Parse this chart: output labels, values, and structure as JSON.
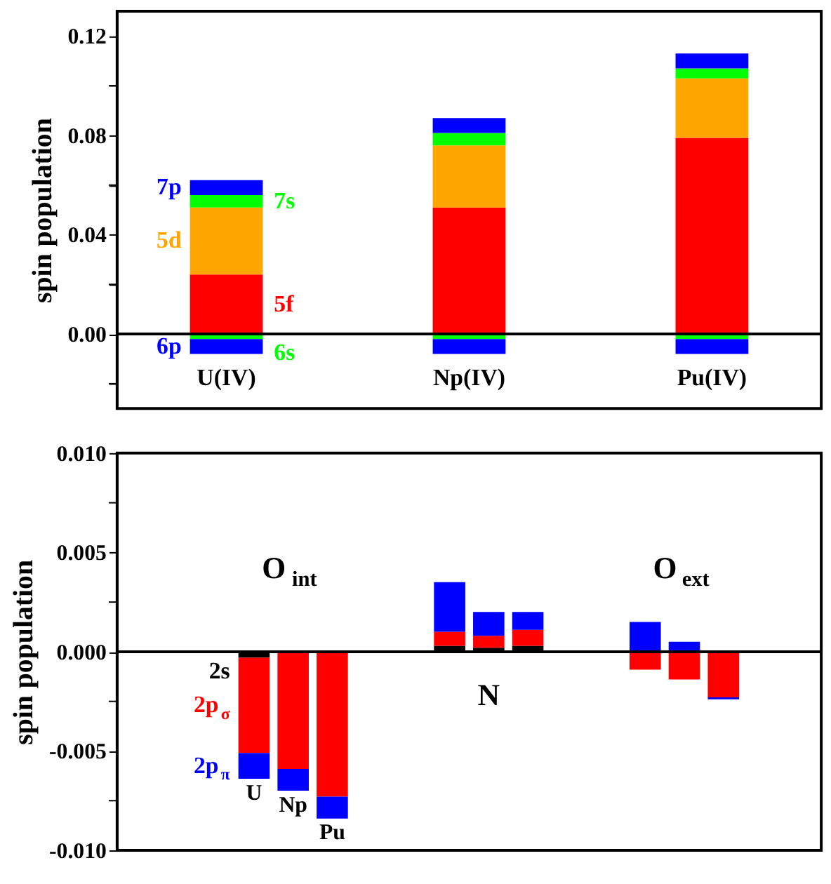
{
  "chart_data": [
    {
      "type": "bar",
      "stacked": true,
      "ylabel": "spin population",
      "categories": [
        "U(IV)",
        "Np(IV)",
        "Pu(IV)"
      ],
      "series": [
        {
          "name": "5f",
          "color": "#ff0000",
          "values": [
            0.024,
            0.051,
            0.079
          ]
        },
        {
          "name": "5d",
          "color": "#ffa500",
          "values": [
            0.027,
            0.025,
            0.024
          ]
        },
        {
          "name": "7s",
          "color": "#00ff00",
          "values": [
            0.005,
            0.005,
            0.004
          ]
        },
        {
          "name": "7p",
          "color": "#0000ff",
          "values": [
            0.006,
            0.006,
            0.006
          ]
        },
        {
          "name": "6s",
          "color": "#00ff00",
          "values": [
            -0.002,
            -0.002,
            -0.002
          ]
        },
        {
          "name": "6p",
          "color": "#0000ff",
          "values": [
            -0.006,
            -0.006,
            -0.006
          ]
        }
      ],
      "ylim": [
        -0.03,
        0.13
      ],
      "yticks": [
        {
          "value": -0.02,
          "label": null
        },
        {
          "value": 0,
          "label": "0.00"
        },
        {
          "value": 0.02,
          "label": null
        },
        {
          "value": 0.04,
          "label": "0.04"
        },
        {
          "value": 0.06,
          "label": null
        },
        {
          "value": 0.08,
          "label": "0.08"
        },
        {
          "value": 0.1,
          "label": null
        },
        {
          "value": 0.12,
          "label": "0.12"
        }
      ],
      "ref_lines": [
        {
          "axis": "y",
          "value": 0,
          "color": "#000000"
        }
      ],
      "grid": false,
      "legend": false
    },
    {
      "type": "bar",
      "stacked": true,
      "ylabel": "spin population",
      "categories": [
        null,
        null,
        null,
        null,
        null,
        null,
        null,
        null,
        null,
        null,
        null,
        null,
        null,
        null,
        null,
        null,
        null,
        null
      ],
      "series": [
        {
          "name": "2s",
          "color": "#000000",
          "values": [
            null,
            null,
            null,
            -0.0003,
            null,
            null,
            null,
            null,
            0.0003,
            0.0002,
            0.0003,
            null,
            null,
            null,
            null,
            null,
            null,
            null
          ]
        },
        {
          "name": "2p$_{σ}$",
          "color": "#ff0000",
          "values": [
            null,
            null,
            null,
            -0.0048,
            -0.0059,
            -0.0073,
            null,
            null,
            0.0007,
            0.0006,
            0.0008,
            null,
            null,
            -0.0009,
            -0.0014,
            -0.0023,
            null,
            null
          ]
        },
        {
          "name": "2p$_{π}$",
          "color": "#0000ff",
          "values": [
            null,
            null,
            null,
            -0.0013,
            -0.0011,
            -0.0011,
            null,
            null,
            0.0025,
            0.0012,
            0.0009,
            null,
            null,
            0.0015,
            0.0005,
            -0.0001,
            null,
            null
          ]
        }
      ],
      "ylim": [
        -0.01,
        0.01
      ],
      "yticks": [
        {
          "value": -0.01,
          "label": "-0.010"
        },
        {
          "value": -0.0075,
          "label": null
        },
        {
          "value": -0.005,
          "label": "-0.005"
        },
        {
          "value": -0.0025,
          "label": null
        },
        {
          "value": 0,
          "label": "0.000"
        },
        {
          "value": 0.0025,
          "label": null
        },
        {
          "value": 0.005,
          "label": "0.005"
        },
        {
          "value": 0.0075,
          "label": null
        },
        {
          "value": 0.01,
          "label": "0.010"
        }
      ],
      "annotations": [
        "O$_{int}$",
        "N",
        "O$_{ext}$",
        "U",
        "Np",
        "Pu"
      ],
      "ref_lines": [
        {
          "axis": "y",
          "value": 0,
          "color": "#000000"
        }
      ],
      "tick_labels": "y",
      "grid": false,
      "legend": false
    }
  ]
}
